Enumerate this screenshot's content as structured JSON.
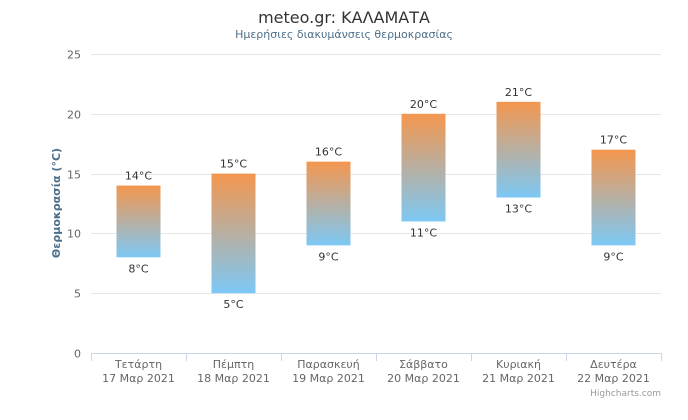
{
  "chart_data": {
    "type": "bar",
    "variant": "columnrange",
    "title": "meteo.gr: ΚΑΛΑΜΑΤΑ",
    "subtitle": "Ημερήσιες διακυμάνσεις θερμοκρασίας",
    "ylabel": "Θερμοκρασία (°C)",
    "ylim": [
      0,
      25
    ],
    "yticks": [
      0,
      5,
      10,
      15,
      20,
      25
    ],
    "ytick_labels": [
      "0",
      "5",
      "10",
      "15",
      "20",
      "25"
    ],
    "grid": true,
    "legend": "none",
    "categories": [
      [
        "Τετάρτη",
        "17 Μαρ 2021"
      ],
      [
        "Πέμπτη",
        "18 Μαρ 2021"
      ],
      [
        "Παρασκευή",
        "19 Μαρ 2021"
      ],
      [
        "Σάββατο",
        "20 Μαρ 2021"
      ],
      [
        "Κυριακή",
        "21 Μαρ 2021"
      ],
      [
        "Δευτέρα",
        "22 Μαρ 2021"
      ]
    ],
    "low": [
      8,
      5,
      9,
      11,
      13,
      9
    ],
    "high": [
      14,
      15,
      16,
      20,
      21,
      17
    ],
    "low_labels": [
      "8°C",
      "5°C",
      "9°C",
      "11°C",
      "13°C",
      "9°C"
    ],
    "high_labels": [
      "14°C",
      "15°C",
      "16°C",
      "20°C",
      "21°C",
      "17°C"
    ],
    "colors": {
      "warm": "#f4964e",
      "cool": "#7cc8f5",
      "grid": "#e6e6e6",
      "axis": "#ccd6eb"
    }
  },
  "credits": "Highcharts.com"
}
